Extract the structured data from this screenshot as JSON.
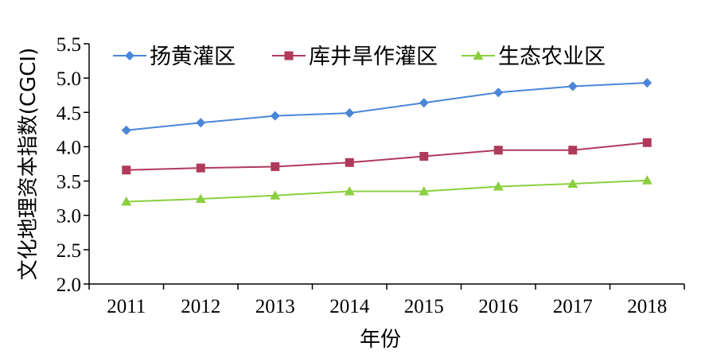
{
  "chart_data": {
    "type": "line",
    "title": "",
    "xlabel": "年份",
    "ylabel": "文化地理资本指数(CGCI)",
    "ylim": [
      2.0,
      5.5
    ],
    "yticks": [
      "2.0",
      "2.5",
      "3.0",
      "3.5",
      "4.0",
      "4.5",
      "5.0",
      "5.5"
    ],
    "categories": [
      "2011",
      "2012",
      "2013",
      "2014",
      "2015",
      "2016",
      "2017",
      "2018"
    ],
    "grid": false,
    "legend_position": "top",
    "series": [
      {
        "name": "扬黄灌区",
        "color": "#4A86D8",
        "marker": "diamond",
        "values": [
          4.24,
          4.35,
          4.45,
          4.49,
          4.64,
          4.79,
          4.88,
          4.93
        ]
      },
      {
        "name": "库井旱作灌区",
        "color": "#B03A5B",
        "marker": "square",
        "values": [
          3.66,
          3.69,
          3.71,
          3.77,
          3.86,
          3.95,
          3.95,
          4.06
        ]
      },
      {
        "name": "生态农业区",
        "color": "#8BCF3F",
        "marker": "triangle",
        "values": [
          3.2,
          3.24,
          3.29,
          3.35,
          3.35,
          3.42,
          3.46,
          3.51
        ]
      }
    ]
  }
}
